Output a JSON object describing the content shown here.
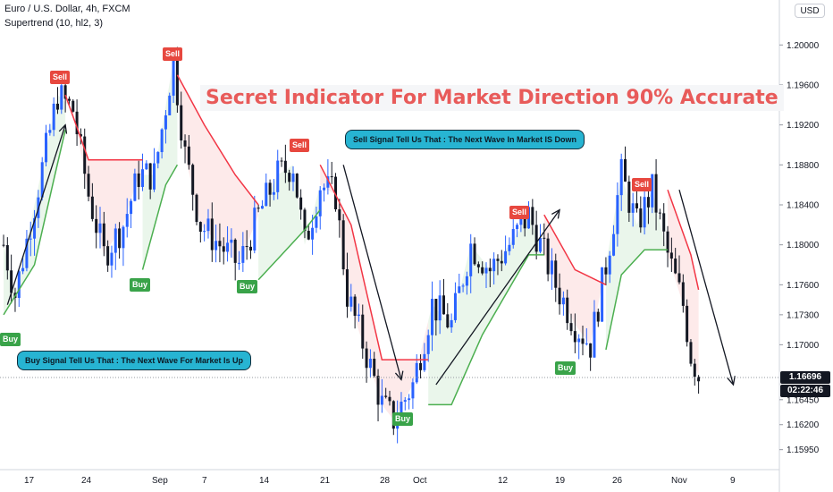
{
  "header": {
    "title": "Euro / U.S. Dollar, 4h, FXCM",
    "indicator": "Supertrend (10, hl2, 3)",
    "currency": "USD"
  },
  "headline": "Secret Indicator For Market Direction 90% Accurate",
  "callouts": {
    "sell": "Sell Signal Tell Us That : The Next Wave In Market IS Down",
    "buy": "Buy Signal Tell Us That : The Next Wave For Market Is Up"
  },
  "signals": [
    {
      "label": "Buy",
      "type": "buy"
    },
    {
      "label": "Sell",
      "type": "sell"
    },
    {
      "label": "Buy",
      "type": "buy"
    },
    {
      "label": "Sell",
      "type": "sell"
    },
    {
      "label": "Buy",
      "type": "buy"
    },
    {
      "label": "Sell",
      "type": "sell"
    },
    {
      "label": "Buy",
      "type": "buy"
    },
    {
      "label": "Sell",
      "type": "sell"
    },
    {
      "label": "Buy",
      "type": "buy"
    },
    {
      "label": "Sell",
      "type": "sell"
    }
  ],
  "current": {
    "price": "1.16696",
    "countdown": "02:22:46"
  },
  "colors": {
    "up": "#2962ff",
    "down": "#131722",
    "supertrend_up": "#4caf50",
    "supertrend_down": "#f23645",
    "fill_up": "#e8f5e9",
    "fill_down": "#fde8e8",
    "headline": "#e85b5a",
    "callout": "#27b4d2"
  },
  "chart_data": {
    "type": "line",
    "title": "Euro / U.S. Dollar, 4h, FXCM",
    "xlabel": "",
    "ylabel": "",
    "ylim": [
      1.1575,
      1.2045
    ],
    "y_ticks": [
      "1.20000",
      "1.19600",
      "1.19200",
      "1.18800",
      "1.18400",
      "1.18000",
      "1.17600",
      "1.17300",
      "1.17000",
      "1.16696",
      "1.16450",
      "1.16200",
      "1.15950"
    ],
    "x_ticks": [
      "17",
      "24",
      "Sep",
      "7",
      "14",
      "21",
      "28",
      "Oct",
      "12",
      "19",
      "26",
      "Nov",
      "9"
    ],
    "price_path": [
      {
        "t": 0,
        "v": 1.18
      },
      {
        "t": 3,
        "v": 1.175
      },
      {
        "t": 8,
        "v": 1.184
      },
      {
        "t": 14,
        "v": 1.195
      },
      {
        "t": 18,
        "v": 1.1935
      },
      {
        "t": 22,
        "v": 1.185
      },
      {
        "t": 26,
        "v": 1.179
      },
      {
        "t": 31,
        "v": 1.182
      },
      {
        "t": 35,
        "v": 1.187
      },
      {
        "t": 39,
        "v": 1.187
      },
      {
        "t": 44,
        "v": 1.1985
      },
      {
        "t": 47,
        "v": 1.189
      },
      {
        "t": 51,
        "v": 1.182
      },
      {
        "t": 56,
        "v": 1.18
      },
      {
        "t": 61,
        "v": 1.178
      },
      {
        "t": 66,
        "v": 1.183
      },
      {
        "t": 71,
        "v": 1.187
      },
      {
        "t": 75,
        "v": 1.188
      },
      {
        "t": 78,
        "v": 1.18
      },
      {
        "t": 82,
        "v": 1.186
      },
      {
        "t": 86,
        "v": 1.185
      },
      {
        "t": 89,
        "v": 1.175
      },
      {
        "t": 94,
        "v": 1.169
      },
      {
        "t": 98,
        "v": 1.164
      },
      {
        "t": 101,
        "v": 1.1625
      },
      {
        "t": 106,
        "v": 1.166
      },
      {
        "t": 111,
        "v": 1.174
      },
      {
        "t": 116,
        "v": 1.172
      },
      {
        "t": 121,
        "v": 1.18
      },
      {
        "t": 126,
        "v": 1.1775
      },
      {
        "t": 131,
        "v": 1.18
      },
      {
        "t": 136,
        "v": 1.183
      },
      {
        "t": 139,
        "v": 1.18
      },
      {
        "t": 143,
        "v": 1.176
      },
      {
        "t": 148,
        "v": 1.172
      },
      {
        "t": 152,
        "v": 1.17
      },
      {
        "t": 156,
        "v": 1.178
      },
      {
        "t": 160,
        "v": 1.187
      },
      {
        "t": 164,
        "v": 1.182
      },
      {
        "t": 168,
        "v": 1.1855
      },
      {
        "t": 172,
        "v": 1.179
      },
      {
        "t": 176,
        "v": 1.174
      },
      {
        "t": 178,
        "v": 1.169
      },
      {
        "t": 180,
        "v": 1.1669
      }
    ],
    "supertrend": [
      {
        "t": 0,
        "v": 1.173,
        "dir": "up"
      },
      {
        "t": 8,
        "v": 1.178,
        "dir": "up"
      },
      {
        "t": 13,
        "v": 1.1865,
        "dir": "up"
      },
      {
        "t": 16,
        "v": 1.1915,
        "dir": "up"
      },
      {
        "t": 16,
        "v": 1.195,
        "dir": "down"
      },
      {
        "t": 22,
        "v": 1.1885,
        "dir": "down"
      },
      {
        "t": 36,
        "v": 1.1885,
        "dir": "down"
      },
      {
        "t": 36,
        "v": 1.1775,
        "dir": "up"
      },
      {
        "t": 42,
        "v": 1.186,
        "dir": "up"
      },
      {
        "t": 45,
        "v": 1.188,
        "dir": "up"
      },
      {
        "t": 45,
        "v": 1.197,
        "dir": "down"
      },
      {
        "t": 52,
        "v": 1.192,
        "dir": "down"
      },
      {
        "t": 60,
        "v": 1.187,
        "dir": "down"
      },
      {
        "t": 66,
        "v": 1.184,
        "dir": "down"
      },
      {
        "t": 66,
        "v": 1.1765,
        "dir": "up"
      },
      {
        "t": 72,
        "v": 1.179,
        "dir": "up"
      },
      {
        "t": 78,
        "v": 1.1815,
        "dir": "up"
      },
      {
        "t": 82,
        "v": 1.1835,
        "dir": "up"
      },
      {
        "t": 82,
        "v": 1.188,
        "dir": "down"
      },
      {
        "t": 90,
        "v": 1.182,
        "dir": "down"
      },
      {
        "t": 98,
        "v": 1.1685,
        "dir": "down"
      },
      {
        "t": 110,
        "v": 1.1685,
        "dir": "down"
      },
      {
        "t": 110,
        "v": 1.164,
        "dir": "up"
      },
      {
        "t": 116,
        "v": 1.164,
        "dir": "up"
      },
      {
        "t": 124,
        "v": 1.171,
        "dir": "up"
      },
      {
        "t": 136,
        "v": 1.179,
        "dir": "up"
      },
      {
        "t": 140,
        "v": 1.179,
        "dir": "up"
      },
      {
        "t": 140,
        "v": 1.183,
        "dir": "down"
      },
      {
        "t": 148,
        "v": 1.1775,
        "dir": "down"
      },
      {
        "t": 156,
        "v": 1.176,
        "dir": "down"
      },
      {
        "t": 156,
        "v": 1.1695,
        "dir": "up"
      },
      {
        "t": 160,
        "v": 1.177,
        "dir": "up"
      },
      {
        "t": 166,
        "v": 1.1795,
        "dir": "up"
      },
      {
        "t": 172,
        "v": 1.1795,
        "dir": "up"
      },
      {
        "t": 172,
        "v": 1.1855,
        "dir": "down"
      },
      {
        "t": 178,
        "v": 1.179,
        "dir": "down"
      },
      {
        "t": 180,
        "v": 1.1755,
        "dir": "down"
      }
    ],
    "arrows": [
      {
        "from": [
          1,
          1.174
        ],
        "to": [
          16,
          1.192
        ]
      },
      {
        "from": [
          88,
          1.188
        ],
        "to": [
          103,
          1.1665
        ]
      },
      {
        "from": [
          112,
          1.166
        ],
        "to": [
          144,
          1.1835
        ]
      },
      {
        "from": [
          175,
          1.1855
        ],
        "to": [
          189,
          1.166
        ]
      }
    ]
  }
}
